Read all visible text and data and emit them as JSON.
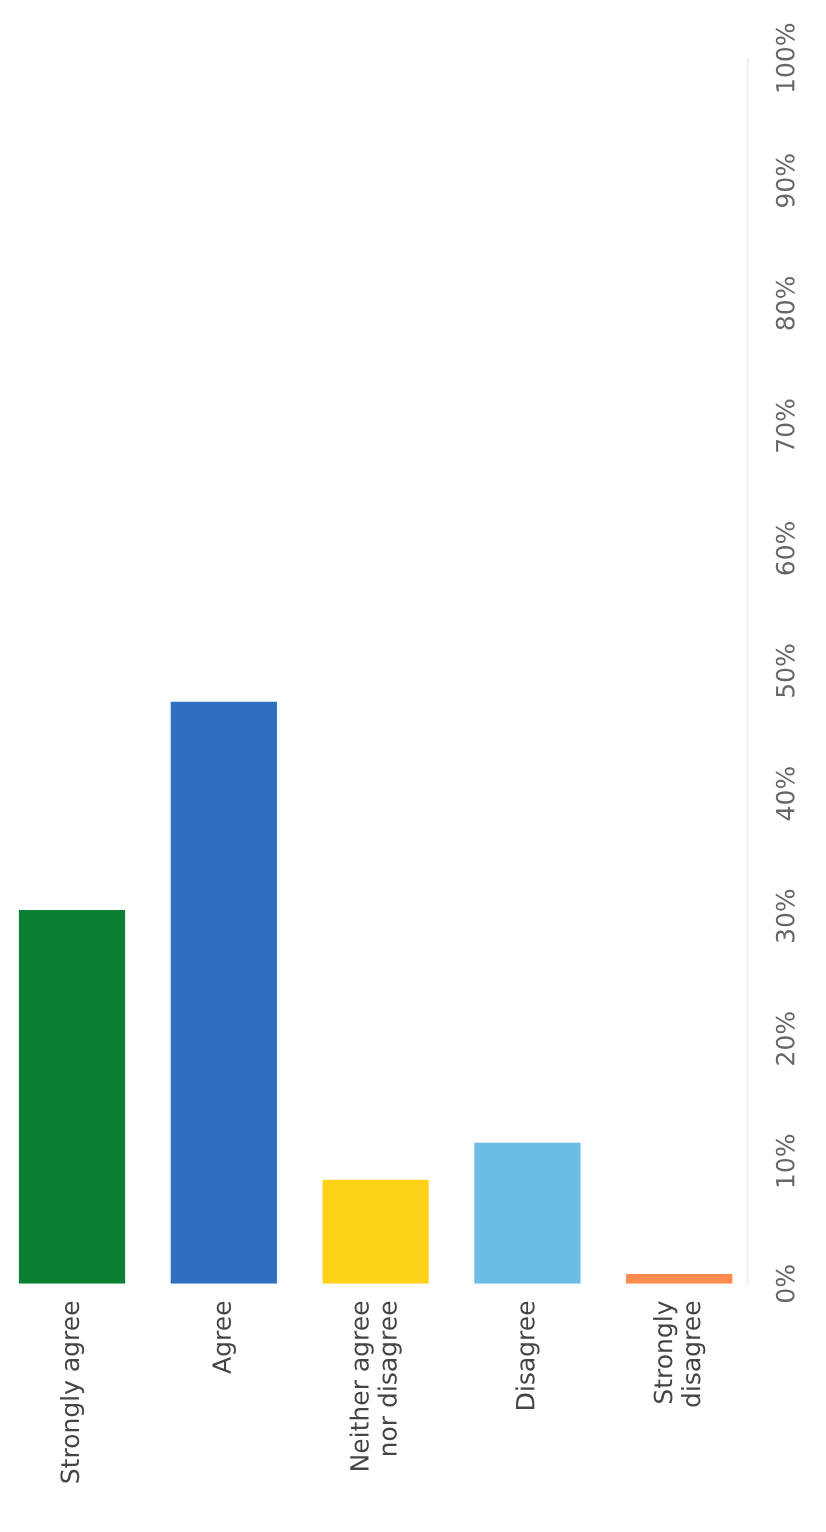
{
  "chart_data": {
    "type": "bar",
    "categories": [
      "Strongly agree",
      "Agree",
      "Neither agree\nnor disagree",
      "Disagree",
      "Strongly\ndisagree"
    ],
    "values": [
      30.5,
      47.5,
      8.5,
      11.5,
      0.8
    ],
    "colors": [
      "#0d7f33",
      "#2e6fc0",
      "#ffd21a",
      "#6bbde6",
      "#ff8a50"
    ],
    "ylim": [
      0,
      100
    ],
    "yticks": [
      {
        "value": 0,
        "label": "0%"
      },
      {
        "value": 10,
        "label": "10%"
      },
      {
        "value": 20,
        "label": "20%"
      },
      {
        "value": 30,
        "label": "30%"
      },
      {
        "value": 40,
        "label": "40%"
      },
      {
        "value": 50,
        "label": "50%"
      },
      {
        "value": 60,
        "label": "60%"
      },
      {
        "value": 70,
        "label": "70%"
      },
      {
        "value": 80,
        "label": "80%"
      },
      {
        "value": 90,
        "label": "90%"
      },
      {
        "value": 100,
        "label": "100%"
      }
    ]
  }
}
